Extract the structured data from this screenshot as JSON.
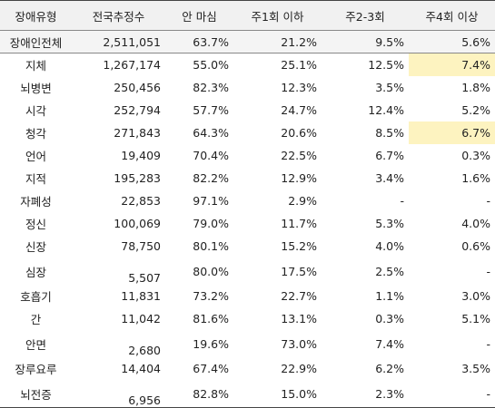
{
  "table": {
    "headers": [
      "장애유형",
      "전국추정수",
      "안 마심",
      "주1회 이하",
      "주2-3회",
      "주4회 이상"
    ],
    "total": {
      "type": "장애인전체",
      "est": "2,511,051",
      "none": "63.7%",
      "w1": "21.2%",
      "w23": "9.5%",
      "w4": "5.6%"
    },
    "rows": [
      {
        "type": "지체",
        "est": "1,267,174",
        "none": "55.0%",
        "w1": "25.1%",
        "w23": "12.5%",
        "w4": "7.4%"
      },
      {
        "type": "뇌병변",
        "est": "250,456",
        "none": "82.3%",
        "w1": "12.3%",
        "w23": "3.5%",
        "w4": "1.8%"
      },
      {
        "type": "시각",
        "est": "252,794",
        "none": "57.7%",
        "w1": "24.7%",
        "w23": "12.4%",
        "w4": "5.2%"
      },
      {
        "type": "청각",
        "est": "271,843",
        "none": "64.3%",
        "w1": "20.6%",
        "w23": "8.5%",
        "w4": "6.7%"
      },
      {
        "type": "언어",
        "est": "19,409",
        "none": "70.4%",
        "w1": "22.5%",
        "w23": "6.7%",
        "w4": "0.3%"
      },
      {
        "type": "지적",
        "est": "195,283",
        "none": "82.2%",
        "w1": "12.9%",
        "w23": "3.4%",
        "w4": "1.6%"
      },
      {
        "type": "자폐성",
        "est": "22,853",
        "none": "97.1%",
        "w1": "2.9%",
        "w23": "-",
        "w4": "-"
      },
      {
        "type": "정신",
        "est": "100,069",
        "none": "79.0%",
        "w1": "11.7%",
        "w23": "5.3%",
        "w4": "4.0%"
      },
      {
        "type": "신장",
        "est": "78,750",
        "none": "80.1%",
        "w1": "15.2%",
        "w23": "4.0%",
        "w4": "0.6%"
      },
      {
        "type": "심장",
        "est": "5,507",
        "none": "80.0%",
        "w1": "17.5%",
        "w23": "2.5%",
        "w4": "-"
      },
      {
        "type": "호흡기",
        "est": "11,831",
        "none": "73.2%",
        "w1": "22.7%",
        "w23": "1.1%",
        "w4": "3.0%"
      },
      {
        "type": "간",
        "est": "11,042",
        "none": "81.6%",
        "w1": "13.1%",
        "w23": "0.3%",
        "w4": "5.1%"
      },
      {
        "type": "안면",
        "est": "2,680",
        "none": "19.6%",
        "w1": "73.0%",
        "w23": "7.4%",
        "w4": "-"
      },
      {
        "type": "장루요루",
        "est": "14,404",
        "none": "67.4%",
        "w1": "22.9%",
        "w23": "6.2%",
        "w4": "3.5%"
      },
      {
        "type": "뇌전증",
        "est": "6,956",
        "none": "82.8%",
        "w1": "15.0%",
        "w23": "2.3%",
        "w4": "-"
      }
    ],
    "highlight_color": "#fdf3c0"
  }
}
